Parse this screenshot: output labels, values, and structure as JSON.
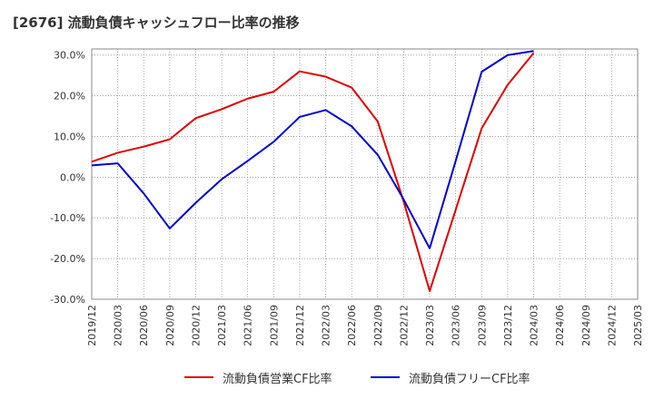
{
  "chart_data": {
    "type": "line",
    "title": "[2676]  流動負債キャッシュフロー比率の推移",
    "x": [
      "2019/12",
      "2020/03",
      "2020/06",
      "2020/09",
      "2020/12",
      "2021/03",
      "2021/06",
      "2021/09",
      "2021/12",
      "2022/03",
      "2022/06",
      "2022/09",
      "2022/12",
      "2023/03",
      "2023/06",
      "2023/09",
      "2023/12",
      "2024/03",
      "2024/06",
      "2024/09",
      "2024/12",
      "2025/03"
    ],
    "y_ticks": [
      "30.0%",
      "20.0%",
      "10.0%",
      "0.0%",
      "-10.0%",
      "-20.0%",
      "-30.0%"
    ],
    "ylim": [
      -30,
      31.5
    ],
    "grid": true,
    "legend_position": "bottom",
    "series": [
      {
        "name": "流動負債営業CF比率",
        "color": "#dd0000",
        "values": [
          3.8,
          6.0,
          7.5,
          9.3,
          14.5,
          16.7,
          19.3,
          21.0,
          26.0,
          24.7,
          22.0,
          13.7,
          -6.0,
          -28.0,
          -8.0,
          12.0,
          22.7,
          30.5,
          null,
          null,
          null,
          null
        ]
      },
      {
        "name": "流動負債フリーCF比率",
        "color": "#0000cc",
        "values": [
          2.9,
          3.4,
          -4.0,
          -12.6,
          -6.3,
          -0.5,
          4.0,
          8.7,
          14.8,
          16.5,
          12.5,
          5.5,
          -5.5,
          -17.5,
          4.0,
          25.9,
          30.0,
          31.0,
          null,
          null,
          null,
          null
        ]
      }
    ]
  }
}
